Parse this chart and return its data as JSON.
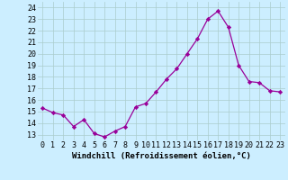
{
  "x": [
    0,
    1,
    2,
    3,
    4,
    5,
    6,
    7,
    8,
    9,
    10,
    11,
    12,
    13,
    14,
    15,
    16,
    17,
    18,
    19,
    20,
    21,
    22,
    23
  ],
  "y": [
    15.3,
    14.9,
    14.7,
    13.7,
    14.3,
    13.1,
    12.8,
    13.3,
    13.7,
    15.4,
    15.7,
    16.7,
    17.8,
    18.7,
    20.0,
    21.3,
    23.0,
    23.7,
    22.3,
    19.0,
    17.6,
    17.5,
    16.8,
    16.7
  ],
  "xlabel": "Windchill (Refroidissement éolien,°C)",
  "ylim": [
    12.5,
    24.5
  ],
  "xlim": [
    -0.5,
    23.5
  ],
  "yticks": [
    13,
    14,
    15,
    16,
    17,
    18,
    19,
    20,
    21,
    22,
    23,
    24
  ],
  "xticks": [
    0,
    1,
    2,
    3,
    4,
    5,
    6,
    7,
    8,
    9,
    10,
    11,
    12,
    13,
    14,
    15,
    16,
    17,
    18,
    19,
    20,
    21,
    22,
    23
  ],
  "line_color": "#990099",
  "marker": "D",
  "marker_size": 2.2,
  "bg_color": "#cceeff",
  "grid_color": "#aacccc",
  "xlabel_fontsize": 6.5,
  "tick_fontsize": 6.0,
  "lw": 0.9
}
